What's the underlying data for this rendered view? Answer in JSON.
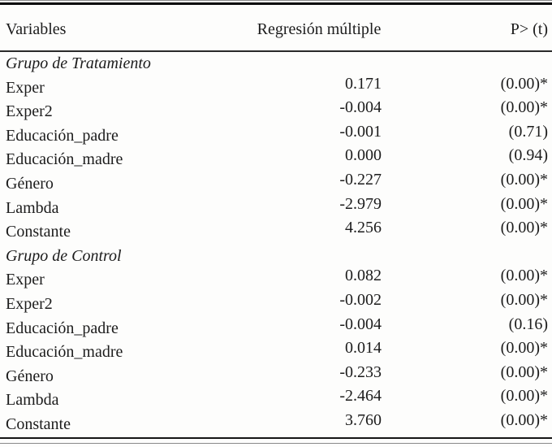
{
  "table": {
    "columns": [
      {
        "label": "Variables"
      },
      {
        "label": "Regresión múltiple"
      },
      {
        "label": "P> (t)"
      }
    ],
    "sections": [
      {
        "title": "Grupo de Tratamiento",
        "rows": [
          {
            "variable": "Exper",
            "coef": "0.171",
            "p": "(0.00)*"
          },
          {
            "variable": "Exper2",
            "coef": "-0.004",
            "p": "(0.00)*"
          },
          {
            "variable": "Educación_padre",
            "coef": "-0.001",
            "p": "(0.71)"
          },
          {
            "variable": "Educación_madre",
            "coef": "0.000",
            "p": "(0.94)"
          },
          {
            "variable": "Género",
            "coef": "-0.227",
            "p": "(0.00)*"
          },
          {
            "variable": "Lambda",
            "coef": "-2.979",
            "p": "(0.00)*"
          },
          {
            "variable": "Constante",
            "coef": "4.256",
            "p": "(0.00)*"
          }
        ]
      },
      {
        "title": "Grupo de Control",
        "rows": [
          {
            "variable": "Exper",
            "coef": "0.082",
            "p": "(0.00)*"
          },
          {
            "variable": "Exper2",
            "coef": "-0.002",
            "p": "(0.00)*"
          },
          {
            "variable": "Educación_padre",
            "coef": "-0.004",
            "p": "(0.16)"
          },
          {
            "variable": "Educación_madre",
            "coef": "0.014",
            "p": "(0.00)*"
          },
          {
            "variable": "Género",
            "coef": "-0.233",
            "p": "(0.00)*"
          },
          {
            "variable": "Lambda",
            "coef": "-2.464",
            "p": "(0.00)*"
          },
          {
            "variable": "Constante",
            "coef": "3.760",
            "p": "(0.00)*"
          }
        ]
      }
    ]
  }
}
